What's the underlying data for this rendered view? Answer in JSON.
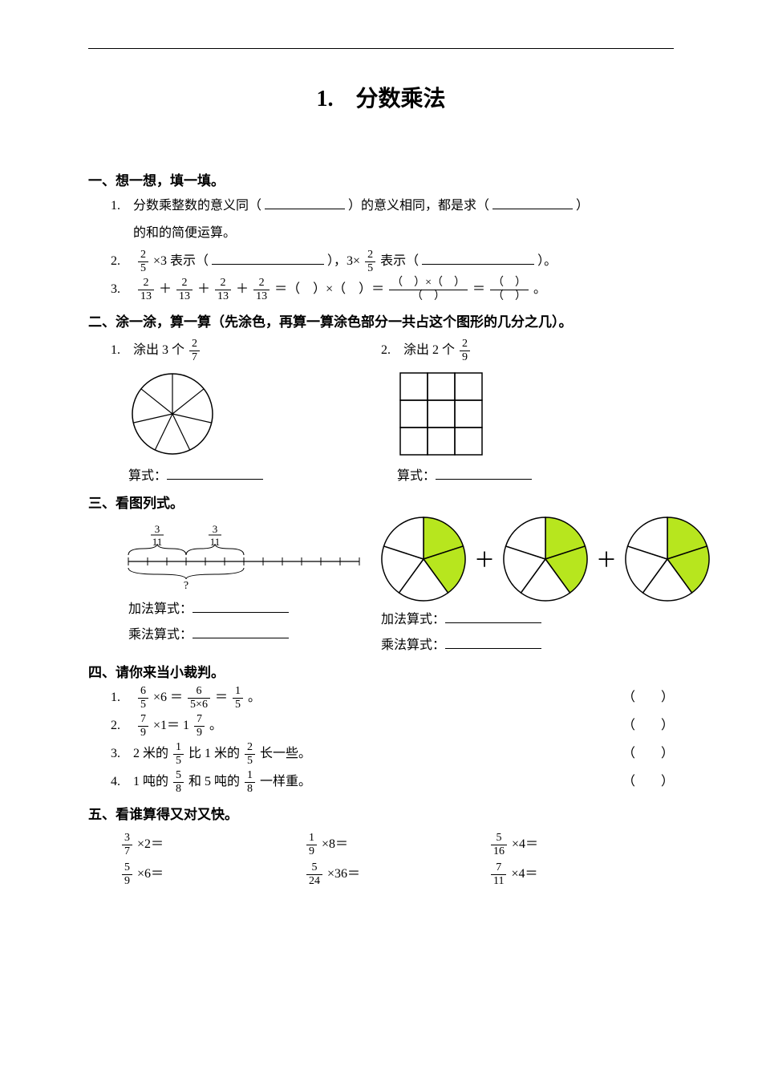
{
  "title": "1.　分数乘法",
  "sec1": {
    "head": "一、想一想，填一填。",
    "q1a": "1.　分数乘整数的意义同（",
    "q1b": "）的意义相同，都是求（",
    "q1c": "）",
    "q1d": "的和的简便运算。",
    "q2a": "2.　",
    "q2_frac1_n": "2",
    "q2_frac1_d": "5",
    "q2b": " ×3 表示（",
    "q2c": "），3×",
    "q2_frac2_n": "2",
    "q2_frac2_d": "5",
    "q2d": " 表示（",
    "q2e": "）。",
    "q3a": "3.　",
    "q3f_n": "2",
    "q3f_d": "13",
    "q3plus": " ＋ ",
    "q3eq1": " ＝（　）×（　）＝ ",
    "q3br_num": "（　）×（　）",
    "q3br_den": "（　）",
    "q3eq2": " ＝ ",
    "q3r_num": "（　）",
    "q3r_den": "（　）",
    "q3end": " 。"
  },
  "sec2": {
    "head": "二、涂一涂，算一算（先涂色，再算一算涂色部分一共占这个图形的几分之几）。",
    "q1": "1.　涂出 3 个 ",
    "q1_fn": "2",
    "q1_fd": "7",
    "q2": "2.　涂出 2 个 ",
    "q2_fn": "2",
    "q2_fd": "9",
    "exp": "算式：",
    "circle": {
      "r": 50,
      "stroke": "#000000",
      "slices": 7
    },
    "grid": {
      "size": 34,
      "rows": 3,
      "cols": 3,
      "stroke": "#000000"
    }
  },
  "sec3": {
    "head": "三、看图列式。",
    "nl": {
      "fn": "3",
      "fd": "11",
      "ticks": 12,
      "brace_each": 3,
      "qmark": "?"
    },
    "pie": {
      "slices": 5,
      "shaded": 2,
      "fill": "#b7e61e",
      "stroke": "#000000",
      "r": 52
    },
    "add": "加法算式：",
    "mul": "乘法算式："
  },
  "sec4": {
    "head": "四、请你来当小裁判。",
    "paren": "（　　）",
    "q1a": "1.　",
    "q1_f1n": "6",
    "q1_f1d": "5",
    "q1b": " ×6 ＝ ",
    "q1_f2n": "6",
    "q1_f2d": "5×6",
    "q1c": " ＝ ",
    "q1_f3n": "1",
    "q1_f3d": "5",
    "q1d": " 。",
    "q2a": "2.　",
    "q2_f1n": "7",
    "q2_f1d": "9",
    "q2b": " ×1＝ 1",
    "q2_f2n": "7",
    "q2_f2d": "9",
    "q2c": " 。",
    "q3a": "3.　2 米的 ",
    "q3_f1n": "1",
    "q3_f1d": "5",
    "q3b": " 比 1 米的 ",
    "q3_f2n": "2",
    "q3_f2d": "5",
    "q3c": " 长一些。",
    "q4a": "4.　1 吨的 ",
    "q4_f1n": "5",
    "q4_f1d": "8",
    "q4b": " 和 5 吨的 ",
    "q4_f2n": "1",
    "q4_f2d": "8",
    "q4c": " 一样重。"
  },
  "sec5": {
    "head": "五、看谁算得又对又快。",
    "cells": [
      [
        {
          "n": "3",
          "d": "7",
          "t": " ×2＝"
        },
        {
          "n": "1",
          "d": "9",
          "t": " ×8＝"
        },
        {
          "n": "5",
          "d": "16",
          "t": " ×4＝"
        }
      ],
      [
        {
          "n": "5",
          "d": "9",
          "t": " ×6＝"
        },
        {
          "n": "5",
          "d": "24",
          "t": " ×36＝"
        },
        {
          "n": "7",
          "d": "11",
          "t": " ×4＝"
        }
      ]
    ]
  }
}
